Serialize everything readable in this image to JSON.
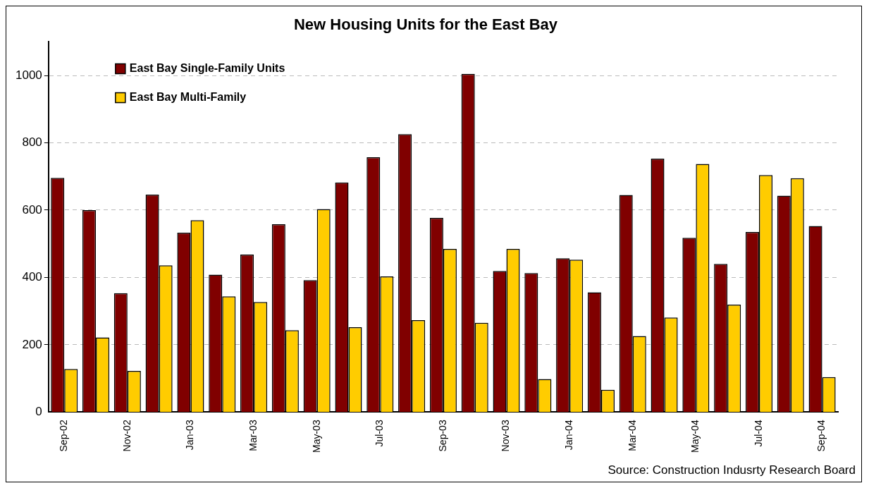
{
  "chart_data": {
    "type": "bar",
    "title": "New Housing Units for the East Bay",
    "categories": [
      "Sep-02",
      null,
      "Nov-02",
      null,
      "Jan-03",
      null,
      "Mar-03",
      null,
      "May-03",
      null,
      "Jul-03",
      null,
      "Sep-03",
      null,
      "Nov-03",
      null,
      "Jan-04",
      null,
      "Mar-04",
      null,
      "May-04",
      null,
      "Jul-04",
      null,
      "Sep-04"
    ],
    "series": [
      {
        "name": "East Bay Single-Family Units",
        "color": "#800000",
        "values": [
          696,
          600,
          353,
          646,
          533,
          408,
          468,
          558,
          392,
          682,
          757,
          826,
          577,
          1005,
          419,
          413,
          457,
          356,
          645,
          753,
          518,
          440,
          535,
          643,
          553
        ]
      },
      {
        "name": "East Bay Multi-Family",
        "color": "#ffcc00",
        "values": [
          128,
          222,
          122,
          436,
          570,
          344,
          327,
          243,
          603,
          252,
          403,
          273,
          485,
          265,
          485,
          98,
          453,
          66,
          226,
          281,
          737,
          319,
          704,
          695,
          104
        ]
      }
    ],
    "ylim": [
      0,
      1100
    ],
    "yticks": [
      0,
      200,
      400,
      600,
      800,
      1000
    ],
    "grid": "y",
    "legend": "top left",
    "annotations": [
      "Source: Construction Indusrty Research Board"
    ]
  }
}
